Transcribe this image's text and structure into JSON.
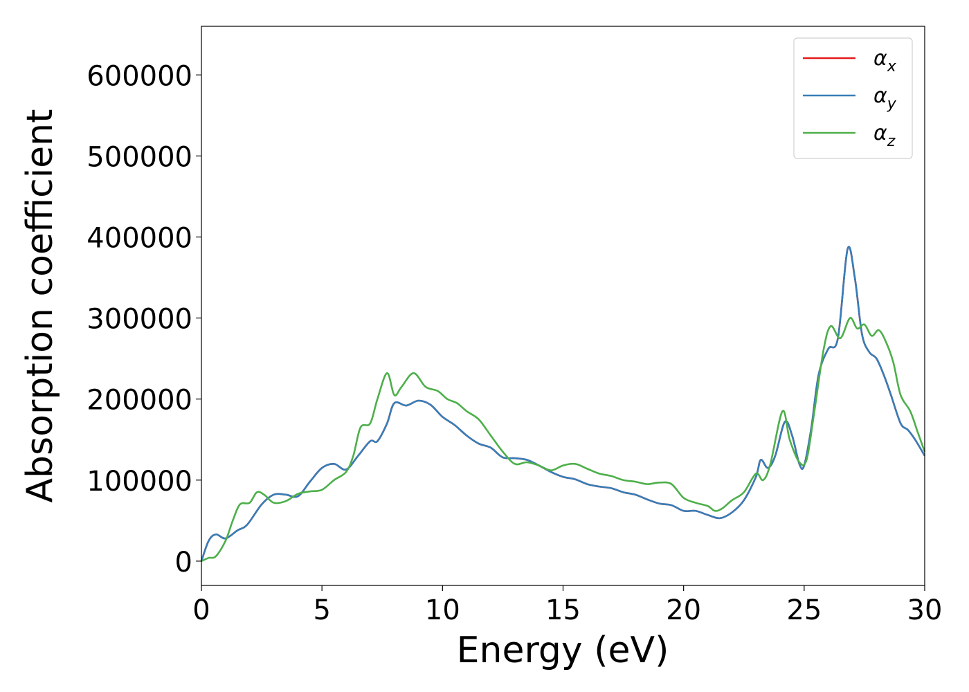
{
  "chart_data": {
    "type": "line",
    "xlabel": "Energy (eV)",
    "ylabel": "Absorption coefficient",
    "xlim": [
      0,
      30
    ],
    "ylim": [
      -30000,
      660000
    ],
    "xticks": [
      "0",
      "5",
      "10",
      "15",
      "20",
      "25",
      "30"
    ],
    "yticks": [
      "0",
      "100000",
      "200000",
      "300000",
      "400000",
      "500000",
      "600000"
    ],
    "grid": false,
    "legend_position": "top-right",
    "series": [
      {
        "name": "α_x",
        "label_main": "α",
        "label_sub": "x",
        "color": "#e41a1c",
        "x": [
          0,
          0.3,
          0.6,
          1.0,
          1.5,
          1.9,
          2.5,
          3.0,
          3.5,
          4.0,
          4.5,
          5.0,
          5.5,
          6.0,
          6.5,
          7.0,
          7.3,
          7.7,
          8.0,
          8.5,
          9.0,
          9.5,
          10.0,
          10.5,
          11.0,
          11.5,
          12.0,
          12.5,
          13.0,
          13.5,
          14.0,
          14.5,
          15.0,
          15.5,
          16.0,
          16.5,
          17.0,
          17.5,
          18.0,
          18.5,
          19.0,
          19.5,
          20.0,
          20.5,
          21.0,
          21.5,
          22.0,
          22.5,
          23.0,
          23.2,
          23.5,
          23.8,
          24.2,
          24.5,
          24.8,
          25.0,
          25.3,
          25.6,
          26.0,
          26.4,
          26.8,
          27.1,
          27.4,
          27.7,
          28.0,
          28.3,
          28.6,
          29.0,
          29.3,
          29.6,
          30.0
        ],
        "y": [
          0,
          25000,
          33000,
          28000,
          38000,
          45000,
          70000,
          82000,
          82000,
          80000,
          98000,
          115000,
          120000,
          113000,
          130000,
          148000,
          148000,
          170000,
          195000,
          192000,
          198000,
          193000,
          178000,
          168000,
          155000,
          145000,
          140000,
          128000,
          127000,
          125000,
          118000,
          110000,
          104000,
          101000,
          95000,
          92000,
          90000,
          85000,
          82000,
          76000,
          71000,
          69000,
          62000,
          62000,
          57000,
          53000,
          60000,
          75000,
          104000,
          125000,
          115000,
          130000,
          172000,
          155000,
          120000,
          118000,
          165000,
          230000,
          262000,
          275000,
          385000,
          350000,
          280000,
          258000,
          250000,
          230000,
          205000,
          170000,
          162000,
          150000,
          130000
        ]
      },
      {
        "name": "α_y",
        "label_main": "α",
        "label_sub": "y",
        "color": "#377eb8",
        "x": [
          0,
          0.3,
          0.6,
          1.0,
          1.5,
          1.9,
          2.5,
          3.0,
          3.5,
          4.0,
          4.5,
          5.0,
          5.5,
          6.0,
          6.5,
          7.0,
          7.3,
          7.7,
          8.0,
          8.5,
          9.0,
          9.5,
          10.0,
          10.5,
          11.0,
          11.5,
          12.0,
          12.5,
          13.0,
          13.5,
          14.0,
          14.5,
          15.0,
          15.5,
          16.0,
          16.5,
          17.0,
          17.5,
          18.0,
          18.5,
          19.0,
          19.5,
          20.0,
          20.5,
          21.0,
          21.5,
          22.0,
          22.5,
          23.0,
          23.2,
          23.5,
          23.8,
          24.2,
          24.5,
          24.8,
          25.0,
          25.3,
          25.6,
          26.0,
          26.4,
          26.8,
          27.1,
          27.4,
          27.7,
          28.0,
          28.3,
          28.6,
          29.0,
          29.3,
          29.6,
          30.0
        ],
        "y": [
          0,
          25000,
          33000,
          28000,
          38000,
          45000,
          70000,
          82000,
          82000,
          80000,
          98000,
          115000,
          120000,
          113000,
          130000,
          148000,
          148000,
          170000,
          195000,
          192000,
          198000,
          193000,
          178000,
          168000,
          155000,
          145000,
          140000,
          128000,
          127000,
          125000,
          118000,
          110000,
          104000,
          101000,
          95000,
          92000,
          90000,
          85000,
          82000,
          76000,
          71000,
          69000,
          62000,
          62000,
          57000,
          53000,
          60000,
          75000,
          104000,
          125000,
          115000,
          130000,
          172000,
          155000,
          120000,
          118000,
          165000,
          230000,
          262000,
          275000,
          385000,
          350000,
          280000,
          258000,
          250000,
          230000,
          205000,
          170000,
          162000,
          150000,
          130000
        ]
      },
      {
        "name": "α_z",
        "label_main": "α",
        "label_sub": "z",
        "color": "#4daf4a",
        "x": [
          0,
          0.3,
          0.6,
          1.0,
          1.3,
          1.6,
          2.0,
          2.3,
          2.6,
          3.0,
          3.5,
          4.0,
          4.5,
          5.0,
          5.5,
          6.0,
          6.3,
          6.6,
          7.0,
          7.3,
          7.7,
          8.0,
          8.3,
          8.8,
          9.3,
          9.8,
          10.2,
          10.6,
          11.0,
          11.5,
          12.0,
          12.5,
          13.0,
          13.5,
          14.0,
          14.5,
          15.0,
          15.5,
          16.0,
          16.5,
          17.0,
          17.5,
          18.0,
          18.5,
          19.0,
          19.5,
          20.0,
          20.5,
          21.0,
          21.3,
          21.6,
          22.0,
          22.5,
          23.0,
          23.3,
          23.6,
          24.1,
          24.4,
          24.8,
          25.1,
          25.4,
          25.8,
          26.1,
          26.5,
          26.9,
          27.2,
          27.5,
          27.8,
          28.1,
          28.4,
          28.7,
          29.0,
          29.4,
          29.7,
          30.0
        ],
        "y": [
          0,
          4000,
          6000,
          25000,
          50000,
          70000,
          72000,
          85000,
          82000,
          72000,
          74000,
          83000,
          86000,
          88000,
          100000,
          110000,
          130000,
          165000,
          170000,
          200000,
          232000,
          205000,
          215000,
          232000,
          215000,
          210000,
          200000,
          195000,
          185000,
          175000,
          155000,
          135000,
          120000,
          122000,
          118000,
          112000,
          118000,
          120000,
          114000,
          108000,
          105000,
          100000,
          98000,
          95000,
          97000,
          95000,
          78000,
          72000,
          68000,
          62000,
          65000,
          75000,
          85000,
          108000,
          100000,
          120000,
          185000,
          150000,
          122000,
          125000,
          180000,
          260000,
          290000,
          275000,
          300000,
          287000,
          292000,
          278000,
          285000,
          270000,
          245000,
          205000,
          185000,
          160000,
          135000
        ]
      }
    ]
  }
}
